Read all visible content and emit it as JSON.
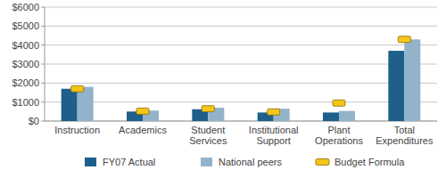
{
  "chart_data": {
    "type": "bar",
    "categories": [
      "Instruction",
      "Academics",
      "Student Services",
      "Institutional Support",
      "Plant Operations",
      "Total Expenditures"
    ],
    "series": [
      {
        "name": "FY07 Actual",
        "color": "#1f5f8b",
        "type": "bar",
        "values": [
          1700,
          500,
          620,
          450,
          450,
          3700
        ]
      },
      {
        "name": "National peers",
        "color": "#93b3cb",
        "type": "bar",
        "values": [
          1800,
          550,
          700,
          650,
          530,
          4300
        ]
      },
      {
        "name": "Budget Formula",
        "color": "#f5c518",
        "type": "scatter",
        "marker": "square",
        "values": [
          1700,
          520,
          650,
          480,
          950,
          4300
        ]
      }
    ],
    "ylim": [
      0,
      6000
    ],
    "yticks": [
      {
        "value": 0,
        "label": "$0"
      },
      {
        "value": 1000,
        "label": "$1000"
      },
      {
        "value": 2000,
        "label": "$2000"
      },
      {
        "value": 3000,
        "label": "$3000"
      },
      {
        "value": 4000,
        "label": "$4000"
      },
      {
        "value": 5000,
        "label": "$5000"
      },
      {
        "value": 6000,
        "label": "$6000"
      }
    ],
    "grid": true,
    "legend": "bottom"
  }
}
